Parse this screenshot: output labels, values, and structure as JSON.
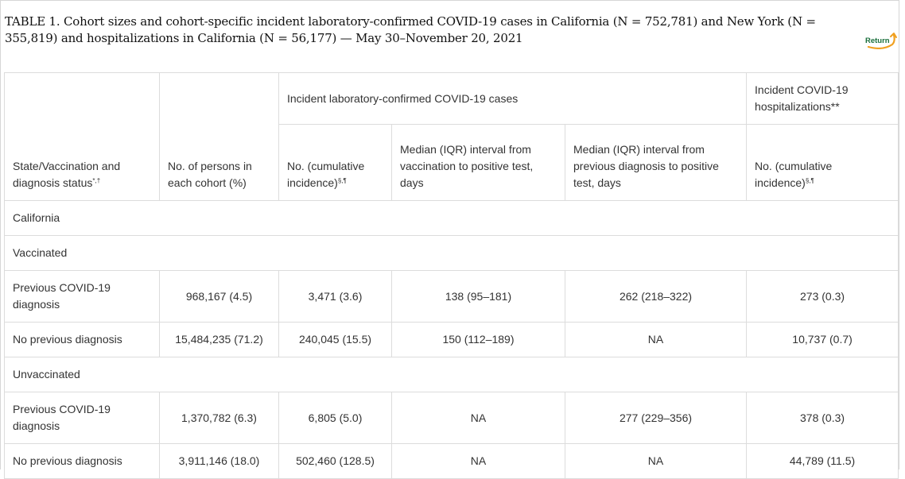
{
  "title": "TABLE 1. Cohort sizes and cohort-specific incident laboratory-confirmed COVID-19 cases in California (N = 752,781) and New York (N = 355,819) and hospitalizations in California (N = 56,177) — May 30–November 20, 2021",
  "return_label": "Return",
  "header": {
    "group_cases": "Incident laboratory-confirmed COVID-19 cases",
    "group_hosp": "Incident COVID-19 hospitalizations**",
    "col_state": "State/Vaccination and diagnosis status",
    "col_state_sup": "*,†",
    "col_persons": "No. of persons in each cohort (%)",
    "col_cases_no": "No. (cumulative incidence)",
    "col_cases_no_sup": "§,¶",
    "col_median_vacc": "Median (IQR) interval from vaccination to positive test, days",
    "col_median_diag": "Median (IQR) interval from previous diagnosis to positive test, days",
    "col_hosp_no": "No. (cumulative incidence)",
    "col_hosp_no_sup": "§,¶"
  },
  "sections": {
    "state": "California",
    "vaccinated": "Vaccinated",
    "unvaccinated": "Unvaccinated"
  },
  "rows": [
    {
      "label": "Previous COVID-19 diagnosis",
      "persons": "968,167 (4.5)",
      "cases": "3,471 (3.6)",
      "median_vacc": "138 (95–181)",
      "median_diag": "262 (218–322)",
      "hosp": "273 (0.3)"
    },
    {
      "label": "No previous diagnosis",
      "persons": "15,484,235 (71.2)",
      "cases": "240,045 (15.5)",
      "median_vacc": "150 (112–189)",
      "median_diag": "NA",
      "hosp": "10,737 (0.7)"
    },
    {
      "label": "Previous COVID-19 diagnosis",
      "persons": "1,370,782 (6.3)",
      "cases": "6,805 (5.0)",
      "median_vacc": "NA",
      "median_diag": "277 (229–356)",
      "hosp": "378 (0.3)"
    },
    {
      "label": "No previous diagnosis",
      "persons": "3,911,146 (18.0)",
      "cases": "502,460 (128.5)",
      "median_vacc": "NA",
      "median_diag": "NA",
      "hosp": "44,789 (11.5)"
    }
  ]
}
